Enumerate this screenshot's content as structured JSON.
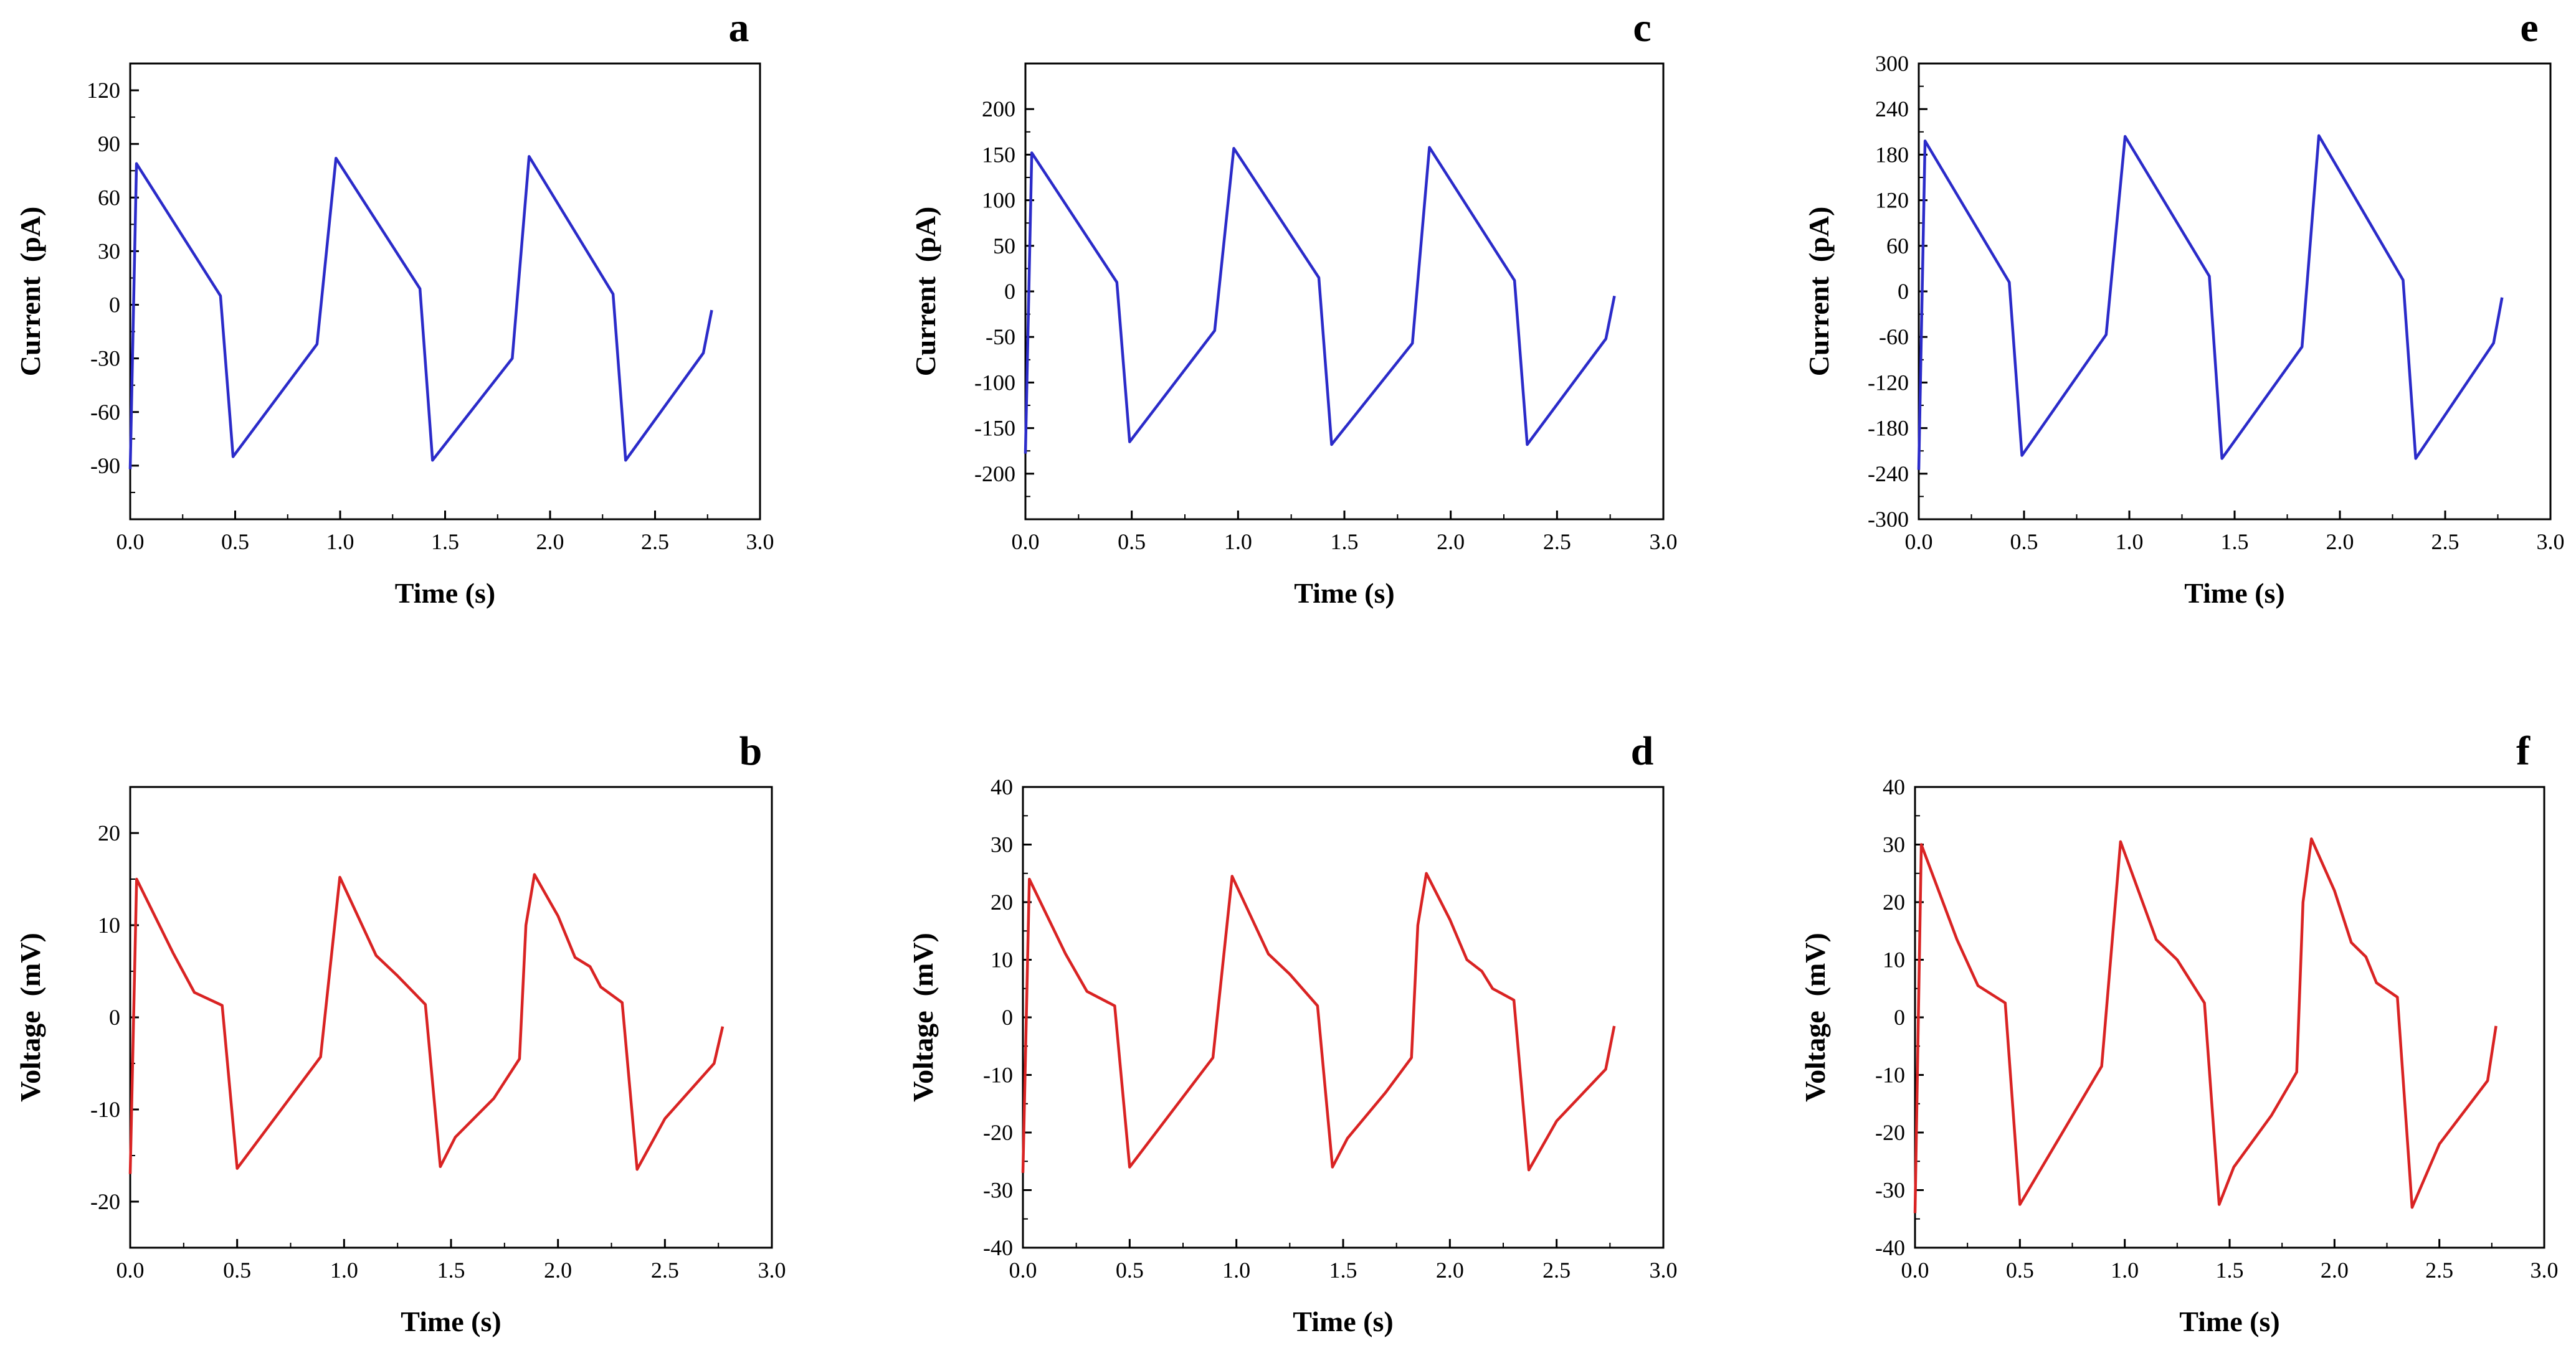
{
  "figure": {
    "description_free": true
  },
  "chart_data": [
    {
      "id": "a",
      "type": "line",
      "panel_label": "a",
      "xlabel": "Time (s)",
      "ylabel": "Current  (pA)",
      "color": "#2b2bc9",
      "xlim": [
        0,
        3.0
      ],
      "ylim": [
        -120,
        135
      ],
      "xticks": [
        0,
        0.5,
        1.0,
        1.5,
        2.0,
        2.5,
        3.0
      ],
      "xtick_labels": [
        "0.0",
        "0.5",
        "1.0",
        "1.5",
        "2.0",
        "2.5",
        "3.0"
      ],
      "yticks": [
        120,
        90,
        60,
        30,
        0,
        -30,
        -60,
        -90
      ],
      "ytick_labels": [
        "120",
        "90",
        "60",
        "30",
        "0",
        "-30",
        "-60",
        "-90"
      ],
      "x": [
        0,
        0.03,
        0.43,
        0.49,
        0.89,
        0.98,
        1.38,
        1.44,
        1.82,
        1.9,
        2.3,
        2.36,
        2.73,
        2.77
      ],
      "y": [
        -92,
        79,
        5,
        -85,
        -22,
        82,
        9,
        -87,
        -30,
        83,
        6,
        -87,
        -27,
        -3
      ]
    },
    {
      "id": "c",
      "type": "line",
      "panel_label": "c",
      "xlabel": "Time (s)",
      "ylabel": "Current  (pA)",
      "color": "#2b2bc9",
      "xlim": [
        0,
        3.0
      ],
      "ylim": [
        -250,
        250
      ],
      "xticks": [
        0,
        0.5,
        1.0,
        1.5,
        2.0,
        2.5,
        3.0
      ],
      "xtick_labels": [
        "0.0",
        "0.5",
        "1.0",
        "1.5",
        "2.0",
        "2.5",
        "3.0"
      ],
      "yticks": [
        200,
        150,
        100,
        50,
        0,
        -50,
        -100,
        -150,
        -200
      ],
      "ytick_labels": [
        "200",
        "150",
        "100",
        "50",
        "0",
        "-50",
        "-100",
        "-150",
        "-200"
      ],
      "x": [
        0,
        0.03,
        0.43,
        0.49,
        0.89,
        0.98,
        1.38,
        1.44,
        1.82,
        1.9,
        2.3,
        2.36,
        2.73,
        2.77
      ],
      "y": [
        -178,
        152,
        10,
        -165,
        -43,
        157,
        15,
        -168,
        -57,
        158,
        12,
        -168,
        -52,
        -5
      ]
    },
    {
      "id": "e",
      "type": "line",
      "panel_label": "e",
      "xlabel": "Time (s)",
      "ylabel": "Current  (pA)",
      "color": "#2b2bc9",
      "xlim": [
        0,
        3.0
      ],
      "ylim": [
        -300,
        300
      ],
      "xticks": [
        0,
        0.5,
        1.0,
        1.5,
        2.0,
        2.5,
        3.0
      ],
      "xtick_labels": [
        "0.0",
        "0.5",
        "1.0",
        "1.5",
        "2.0",
        "2.5",
        "3.0"
      ],
      "yticks": [
        300,
        240,
        180,
        120,
        60,
        0,
        -60,
        -120,
        -180,
        -240,
        -300
      ],
      "ytick_labels": [
        "300",
        "240",
        "180",
        "120",
        "60",
        "0",
        "-60",
        "-120",
        "-180",
        "-240",
        "-300"
      ],
      "x": [
        0,
        0.03,
        0.43,
        0.49,
        0.89,
        0.98,
        1.38,
        1.44,
        1.82,
        1.9,
        2.3,
        2.36,
        2.73,
        2.77
      ],
      "y": [
        -235,
        198,
        12,
        -216,
        -57,
        204,
        20,
        -220,
        -73,
        205,
        15,
        -220,
        -68,
        -8
      ]
    },
    {
      "id": "b",
      "type": "line",
      "panel_label": "b",
      "xlabel": "Time (s)",
      "ylabel": "Voltage  (mV)",
      "color": "#d92323",
      "xlim": [
        0,
        3.0
      ],
      "ylim": [
        -25,
        25
      ],
      "xticks": [
        0,
        0.5,
        1.0,
        1.5,
        2.0,
        2.5,
        3.0
      ],
      "xtick_labels": [
        "0.0",
        "0.5",
        "1.0",
        "1.5",
        "2.0",
        "2.5",
        "3.0"
      ],
      "yticks": [
        20,
        10,
        0,
        -10,
        -20
      ],
      "ytick_labels": [
        "20",
        "10",
        "0",
        "-10",
        "-20"
      ],
      "x": [
        0,
        0.03,
        0.2,
        0.3,
        0.43,
        0.5,
        0.89,
        0.98,
        1.15,
        1.25,
        1.38,
        1.45,
        1.52,
        1.7,
        1.82,
        1.85,
        1.89,
        2.0,
        2.08,
        2.15,
        2.2,
        2.3,
        2.37,
        2.5,
        2.73,
        2.77
      ],
      "y": [
        -17,
        15,
        7,
        2.7,
        1.3,
        -16.4,
        -4.3,
        15.2,
        6.7,
        4.5,
        1.4,
        -16.2,
        -13,
        -8.8,
        -4.5,
        10,
        15.5,
        11,
        6.5,
        5.5,
        3.3,
        1.6,
        -16.5,
        -11,
        -5,
        -1
      ]
    },
    {
      "id": "d",
      "type": "line",
      "panel_label": "d",
      "xlabel": "Time (s)",
      "ylabel": "Voltage  (mV)",
      "color": "#d92323",
      "xlim": [
        0,
        3.0
      ],
      "ylim": [
        -40,
        40
      ],
      "xticks": [
        0,
        0.5,
        1.0,
        1.5,
        2.0,
        2.5,
        3.0
      ],
      "xtick_labels": [
        "0.0",
        "0.5",
        "1.0",
        "1.5",
        "2.0",
        "2.5",
        "3.0"
      ],
      "yticks": [
        40,
        30,
        20,
        10,
        0,
        -10,
        -20,
        -30,
        -40
      ],
      "ytick_labels": [
        "40",
        "30",
        "20",
        "10",
        "0",
        "-10",
        "-20",
        "-30",
        "-40"
      ],
      "x": [
        0,
        0.03,
        0.2,
        0.3,
        0.43,
        0.5,
        0.89,
        0.98,
        1.15,
        1.25,
        1.38,
        1.45,
        1.52,
        1.7,
        1.82,
        1.85,
        1.89,
        2.0,
        2.08,
        2.15,
        2.2,
        2.3,
        2.37,
        2.5,
        2.73,
        2.77
      ],
      "y": [
        -27,
        24,
        11,
        4.5,
        2,
        -26,
        -7,
        24.5,
        11,
        7.5,
        2,
        -26,
        -21,
        -13,
        -7,
        16,
        25,
        17,
        10,
        8,
        5,
        3,
        -26.5,
        -18,
        -9,
        -1.5
      ]
    },
    {
      "id": "f",
      "type": "line",
      "panel_label": "f",
      "xlabel": "Time (s)",
      "ylabel": "Voltage  (mV)",
      "color": "#d92323",
      "xlim": [
        0,
        3.0
      ],
      "ylim": [
        -40,
        40
      ],
      "xticks": [
        0,
        0.5,
        1.0,
        1.5,
        2.0,
        2.5,
        3.0
      ],
      "xtick_labels": [
        "0.0",
        "0.5",
        "1.0",
        "1.5",
        "2.0",
        "2.5",
        "3.0"
      ],
      "yticks": [
        40,
        30,
        20,
        10,
        0,
        -10,
        -20,
        -30,
        -40
      ],
      "ytick_labels": [
        "40",
        "30",
        "20",
        "10",
        "0",
        "-10",
        "-20",
        "-30",
        "-40"
      ],
      "x": [
        0,
        0.03,
        0.2,
        0.3,
        0.43,
        0.5,
        0.89,
        0.98,
        1.15,
        1.25,
        1.38,
        1.45,
        1.52,
        1.7,
        1.82,
        1.85,
        1.89,
        2.0,
        2.08,
        2.15,
        2.2,
        2.3,
        2.37,
        2.5,
        2.73,
        2.77
      ],
      "y": [
        -34,
        30,
        13.5,
        5.5,
        2.5,
        -32.5,
        -8.5,
        30.5,
        13.5,
        10,
        2.5,
        -32.5,
        -26,
        -17,
        -9.5,
        20,
        31,
        22,
        13,
        10.5,
        6,
        3.5,
        -33,
        -22,
        -11,
        -1.5
      ]
    }
  ]
}
